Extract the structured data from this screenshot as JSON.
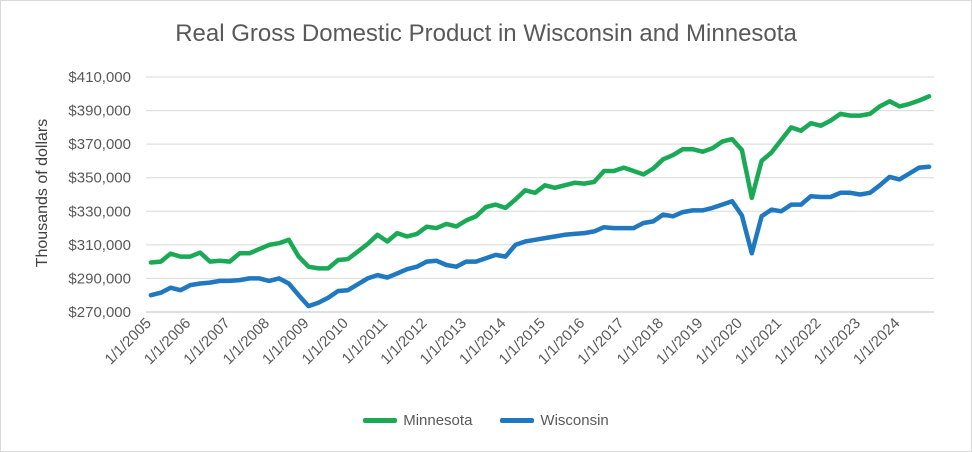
{
  "chart_data": {
    "type": "line",
    "title": "Real Gross Domestic Product in Wisconsin and Minnesota",
    "ylabel": "Thousands of dollars",
    "xlabel": "",
    "ylim": [
      270000,
      410000
    ],
    "yticks": [
      "$270,000",
      "$290,000",
      "$310,000",
      "$330,000",
      "$350,000",
      "$370,000",
      "$390,000",
      "$410,000"
    ],
    "ytick_values": [
      270000,
      290000,
      310000,
      330000,
      350000,
      370000,
      390000,
      410000
    ],
    "xtick_labels": [
      "1/1/2005",
      "1/1/2006",
      "1/1/2007",
      "1/1/2008",
      "1/1/2009",
      "1/1/2010",
      "1/1/2011",
      "1/1/2012",
      "1/1/2013",
      "1/1/2014",
      "1/1/2015",
      "1/1/2016",
      "1/1/2017",
      "1/1/2018",
      "1/1/2019",
      "1/1/2020",
      "1/1/2021",
      "1/1/2022",
      "1/1/2023",
      "1/1/2024"
    ],
    "frequency": "quarterly",
    "grid": "horizontal",
    "legend_position": "bottom",
    "series": [
      {
        "name": "Minnesota",
        "color": "#1aaa55",
        "values": [
          299500,
          300000,
          304800,
          303000,
          303000,
          305400,
          300000,
          300500,
          300000,
          305000,
          305000,
          307500,
          310000,
          311000,
          313000,
          303000,
          297000,
          296000,
          296000,
          301000,
          301500,
          306000,
          310500,
          316000,
          312000,
          317000,
          315000,
          316500,
          320800,
          320000,
          322500,
          321000,
          324500,
          327000,
          332500,
          334000,
          332000,
          337000,
          342500,
          341000,
          345500,
          344000,
          345500,
          347000,
          346500,
          347500,
          354000,
          354000,
          356000,
          354000,
          352000,
          355500,
          361000,
          363500,
          367000,
          367000,
          365500,
          367500,
          371500,
          373000,
          366500,
          338000,
          360000,
          365000,
          372500,
          380000,
          378000,
          382500,
          381000,
          384000,
          388000,
          387000,
          387000,
          388000,
          392500,
          395500,
          392500,
          394000,
          396000,
          398500
        ]
      },
      {
        "name": "Wisconsin",
        "color": "#1f78c0",
        "values": [
          280000,
          281500,
          284500,
          283000,
          286000,
          287000,
          287500,
          288500,
          288500,
          289000,
          290000,
          290000,
          288500,
          290000,
          287000,
          280000,
          273500,
          275500,
          278500,
          282500,
          283000,
          286500,
          290000,
          292000,
          290500,
          293000,
          295500,
          297000,
          300000,
          300500,
          298000,
          297000,
          300000,
          300000,
          302000,
          304000,
          303000,
          310000,
          312000,
          313000,
          314000,
          315000,
          316000,
          316500,
          317000,
          318000,
          320500,
          320000,
          320000,
          320000,
          323000,
          324000,
          328000,
          327000,
          329500,
          330500,
          330500,
          332000,
          334000,
          336000,
          327500,
          305000,
          327000,
          331000,
          330000,
          334000,
          334000,
          339000,
          338500,
          338500,
          341000,
          341000,
          340000,
          341000,
          345500,
          350500,
          349000,
          352500,
          356000,
          356500
        ]
      }
    ]
  }
}
